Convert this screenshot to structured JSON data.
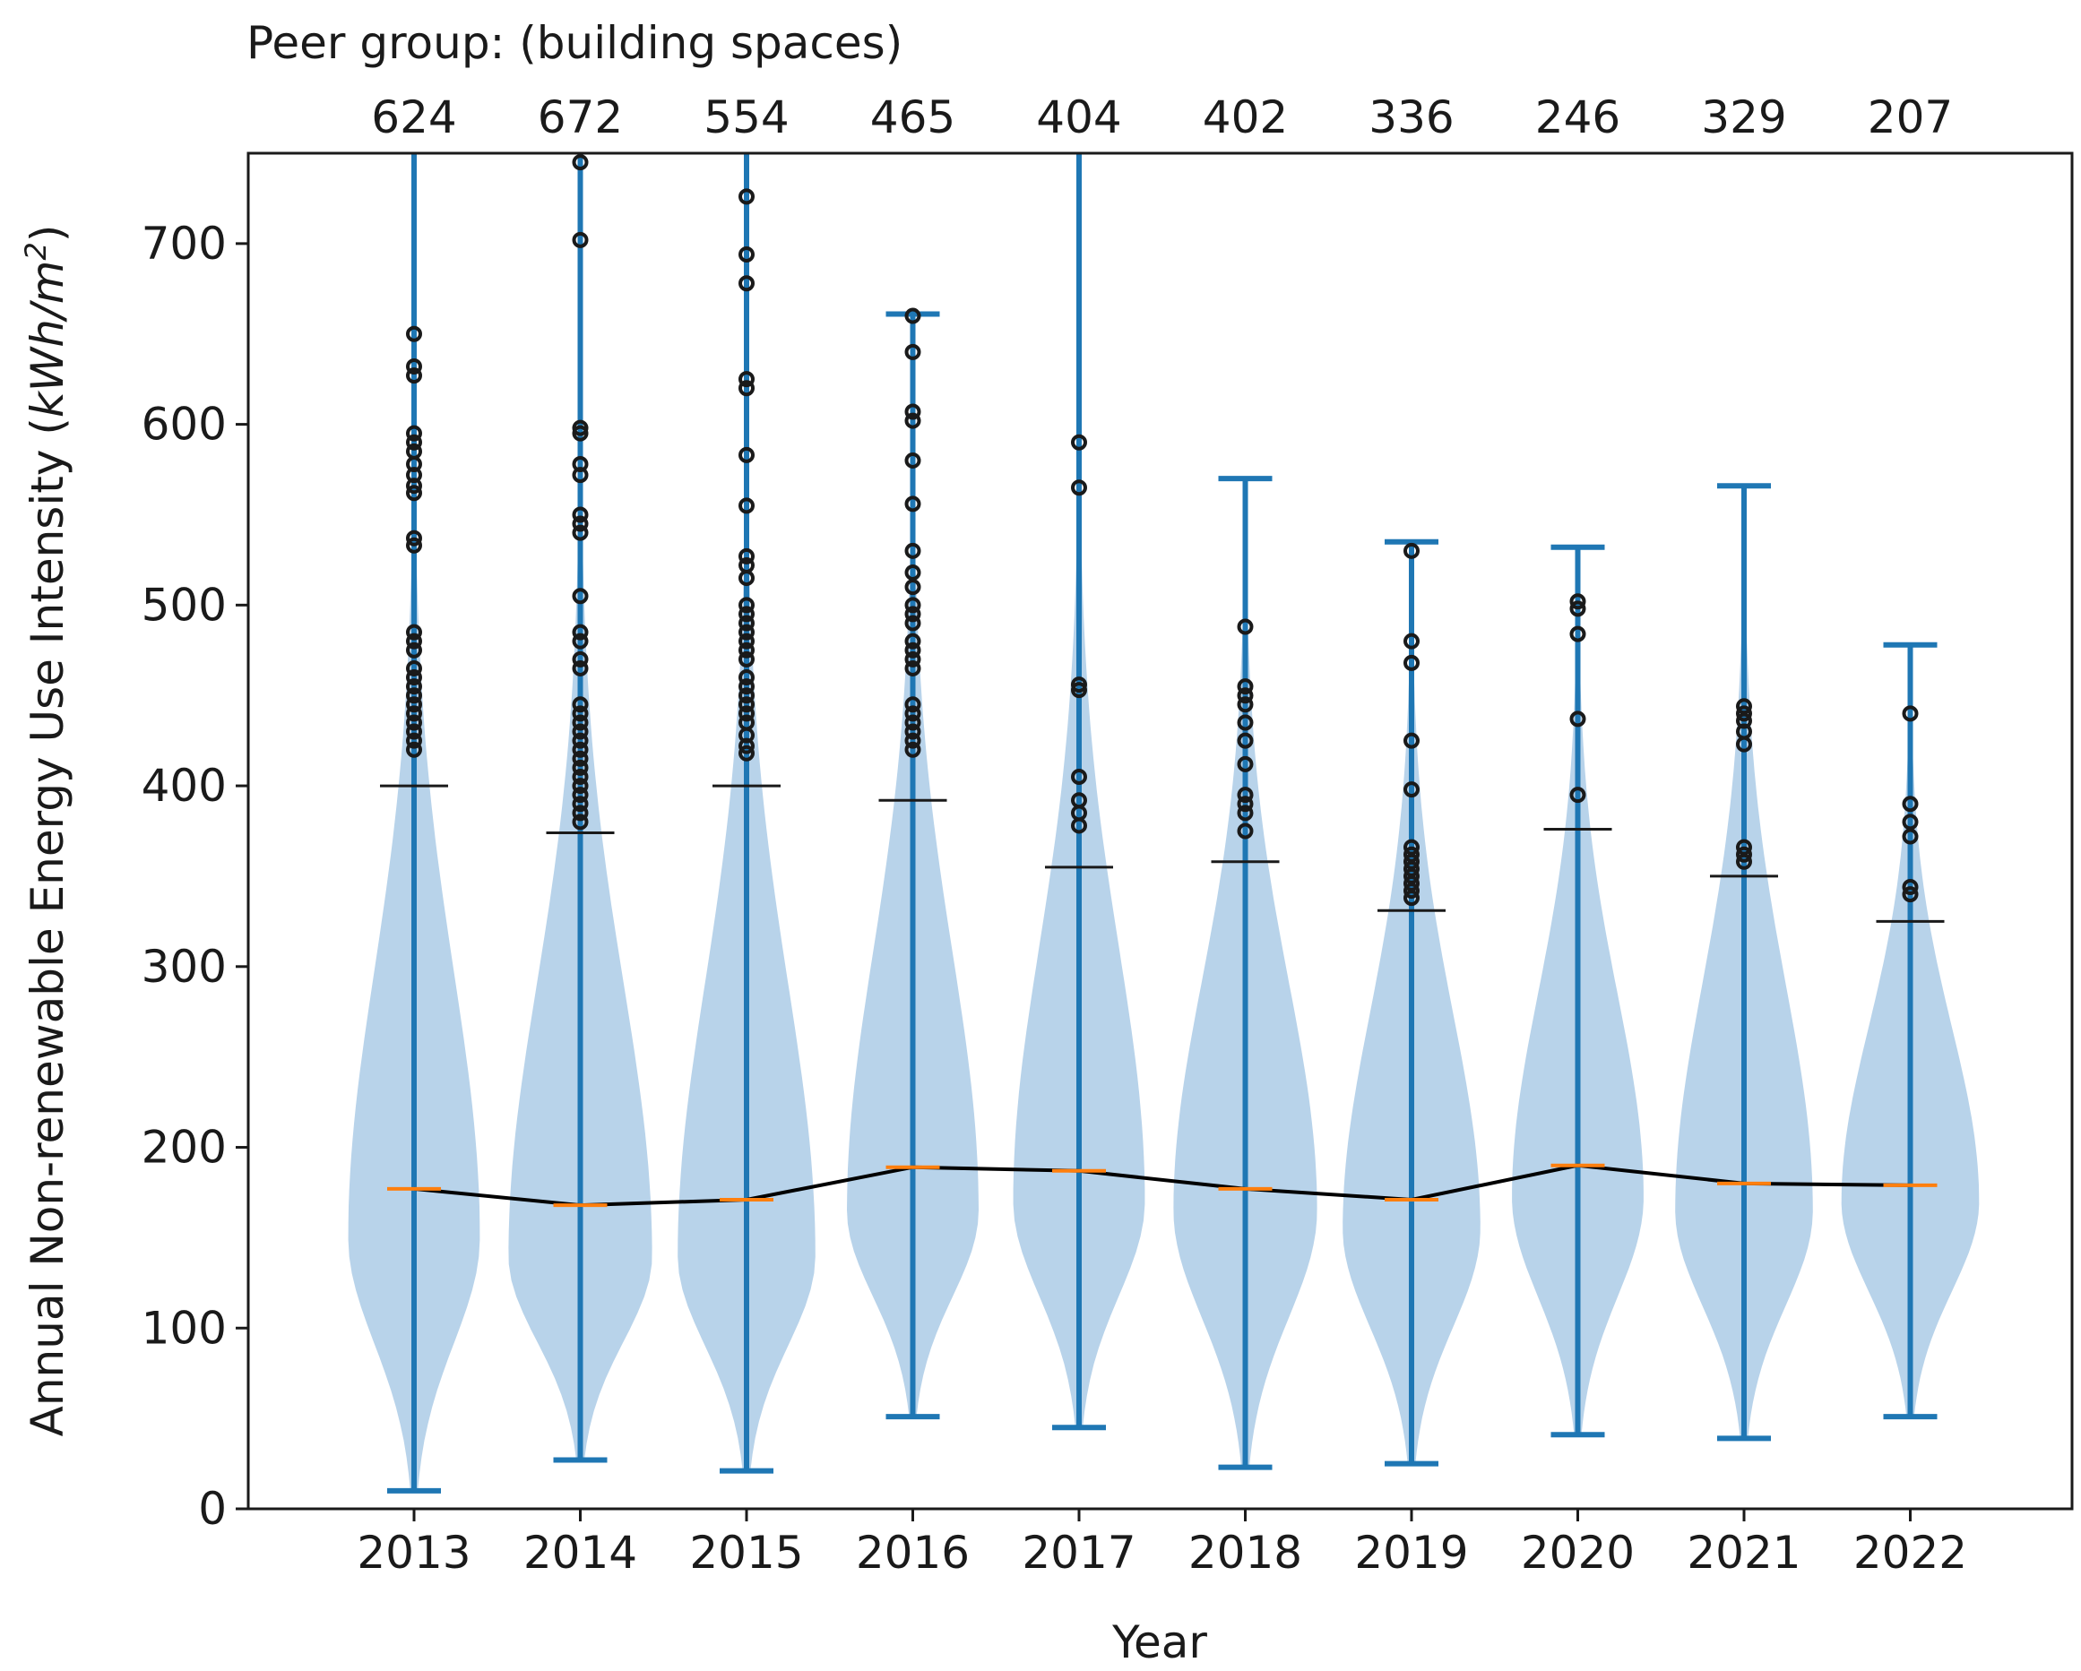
{
  "chart_data": {
    "type": "violin",
    "title": "Peer group:  (building spaces)",
    "xlabel": "Year",
    "ylabel_prefix": "Annual Non-renewable Energy Use Intensity (",
    "ylabel_unit_main": "kWh/m",
    "ylabel_unit_sup": "2",
    "ylabel_suffix": ")",
    "ylim": [
      0,
      750
    ],
    "yticks": [
      0,
      100,
      200,
      300,
      400,
      500,
      600,
      700
    ],
    "categories": [
      "2013",
      "2014",
      "2015",
      "2016",
      "2017",
      "2018",
      "2019",
      "2020",
      "2021",
      "2022"
    ],
    "peer_counts": [
      "624",
      "672",
      "554",
      "465",
      "404",
      "402",
      "336",
      "246",
      "329",
      "207"
    ],
    "median": [
      177,
      168,
      171,
      189,
      187,
      177,
      171,
      190,
      180,
      179
    ],
    "whisker_min": [
      10,
      27,
      21,
      51,
      45,
      23,
      25,
      41,
      39,
      51
    ],
    "whisker_max": [
      750,
      750,
      750,
      661,
      750,
      570,
      535,
      532,
      566,
      478
    ],
    "upper_fence": [
      400,
      374,
      400,
      392,
      355,
      358,
      331,
      376,
      350,
      325
    ],
    "outliers": [
      [
        420,
        425,
        430,
        435,
        440,
        445,
        450,
        455,
        460,
        465,
        475,
        480,
        485,
        533,
        537,
        562,
        566,
        572,
        578,
        585,
        590,
        595,
        627,
        632,
        650
      ],
      [
        380,
        385,
        390,
        395,
        400,
        405,
        410,
        415,
        420,
        425,
        430,
        435,
        440,
        445,
        465,
        470,
        480,
        485,
        505,
        540,
        545,
        550,
        572,
        578,
        595,
        598,
        702,
        745
      ],
      [
        418,
        422,
        428,
        435,
        440,
        445,
        450,
        455,
        460,
        470,
        475,
        480,
        485,
        490,
        495,
        500,
        515,
        522,
        527,
        555,
        583,
        620,
        625,
        678,
        694,
        726
      ],
      [
        420,
        425,
        430,
        435,
        440,
        445,
        465,
        470,
        475,
        480,
        490,
        495,
        500,
        510,
        518,
        530,
        556,
        580,
        602,
        607,
        640,
        660
      ],
      [
        378,
        385,
        392,
        405,
        453,
        456,
        565,
        590
      ],
      [
        375,
        385,
        390,
        395,
        412,
        425,
        435,
        445,
        450,
        455,
        488
      ],
      [
        338,
        342,
        346,
        350,
        354,
        358,
        362,
        366,
        398,
        425,
        468,
        480,
        530
      ],
      [
        395,
        437,
        484,
        498,
        502
      ],
      [
        358,
        362,
        366,
        423,
        430,
        436,
        440,
        444
      ],
      [
        340,
        344,
        372,
        380,
        390,
        440
      ]
    ],
    "violin_mode": [
      150,
      140,
      140,
      165,
      170,
      165,
      155,
      172,
      165,
      170
    ],
    "violin_halfwidth": [
      0.22,
      0.24,
      0.23,
      0.22,
      0.22,
      0.24,
      0.23,
      0.22,
      0.23,
      0.23
    ],
    "colors": {
      "violin_fill": "#b8d3ea",
      "whisker": "#1f77b4",
      "median_tick": "#ff7f0e",
      "fence_tick": "#1a1a1a",
      "median_line": "#000000",
      "outlier": "#1a1a1a"
    }
  }
}
